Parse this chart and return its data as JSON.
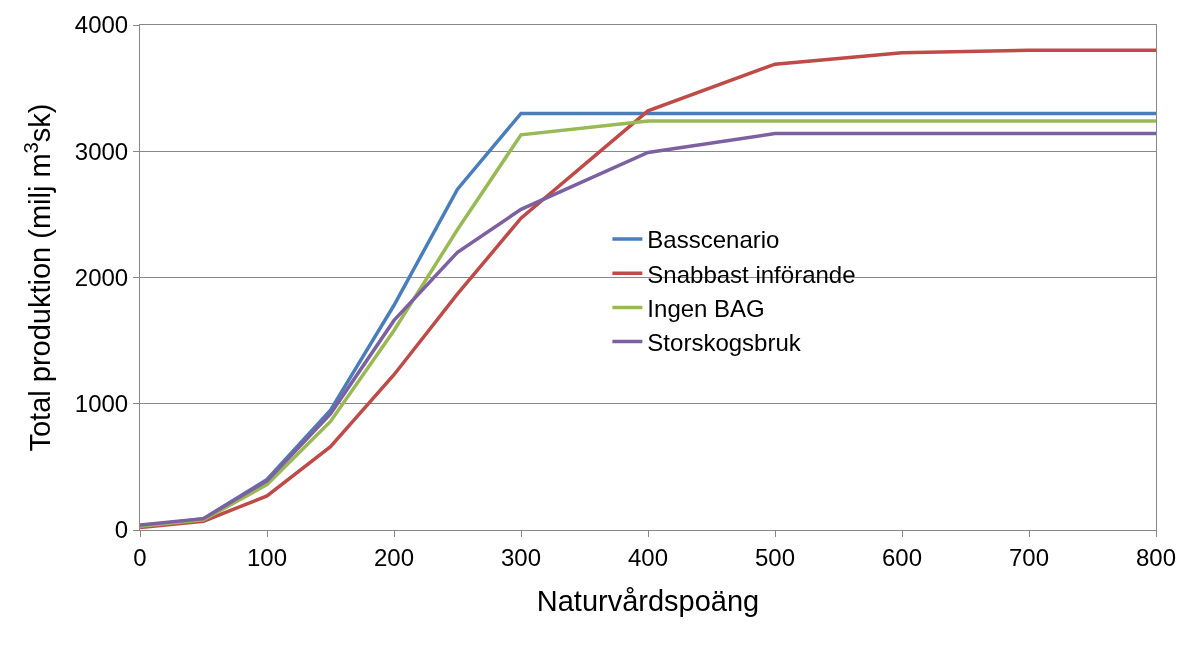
{
  "chart_data": {
    "type": "line",
    "xlabel": "Naturvårdspoäng",
    "ylabel": "Total produktion (milj m$^{3}$sk)",
    "x": [
      0,
      50,
      100,
      150,
      200,
      250,
      300,
      400,
      500,
      600,
      700,
      800
    ],
    "series": [
      {
        "name": "Basscenario",
        "color": "#4a7ebb",
        "values": [
          30,
          90,
          400,
          950,
          1780,
          2700,
          3300,
          3300,
          3300,
          3300,
          3300,
          3300
        ]
      },
      {
        "name": "Snabbast införande",
        "color": "#be4b48",
        "values": [
          20,
          70,
          270,
          660,
          1230,
          1870,
          2470,
          3320,
          3690,
          3780,
          3800,
          3800
        ]
      },
      {
        "name": "Ingen BAG",
        "color": "#98b954",
        "values": [
          30,
          80,
          360,
          860,
          1580,
          2380,
          3130,
          3240,
          3240,
          3240,
          3240,
          3240
        ]
      },
      {
        "name": "Storskogsbruk",
        "color": "#7d60a0",
        "values": [
          40,
          90,
          390,
          920,
          1660,
          2200,
          2540,
          2990,
          3140,
          3140,
          3140,
          3140
        ]
      }
    ],
    "xlim": [
      0,
      800
    ],
    "xticks": [
      0,
      100,
      200,
      300,
      400,
      500,
      600,
      700,
      800
    ],
    "ylim": [
      0,
      4000
    ],
    "yticks": [
      0,
      1000,
      2000,
      3000,
      4000
    ],
    "grid": "y",
    "legend": "right",
    "marker": "none",
    "line_style": "solid"
  }
}
